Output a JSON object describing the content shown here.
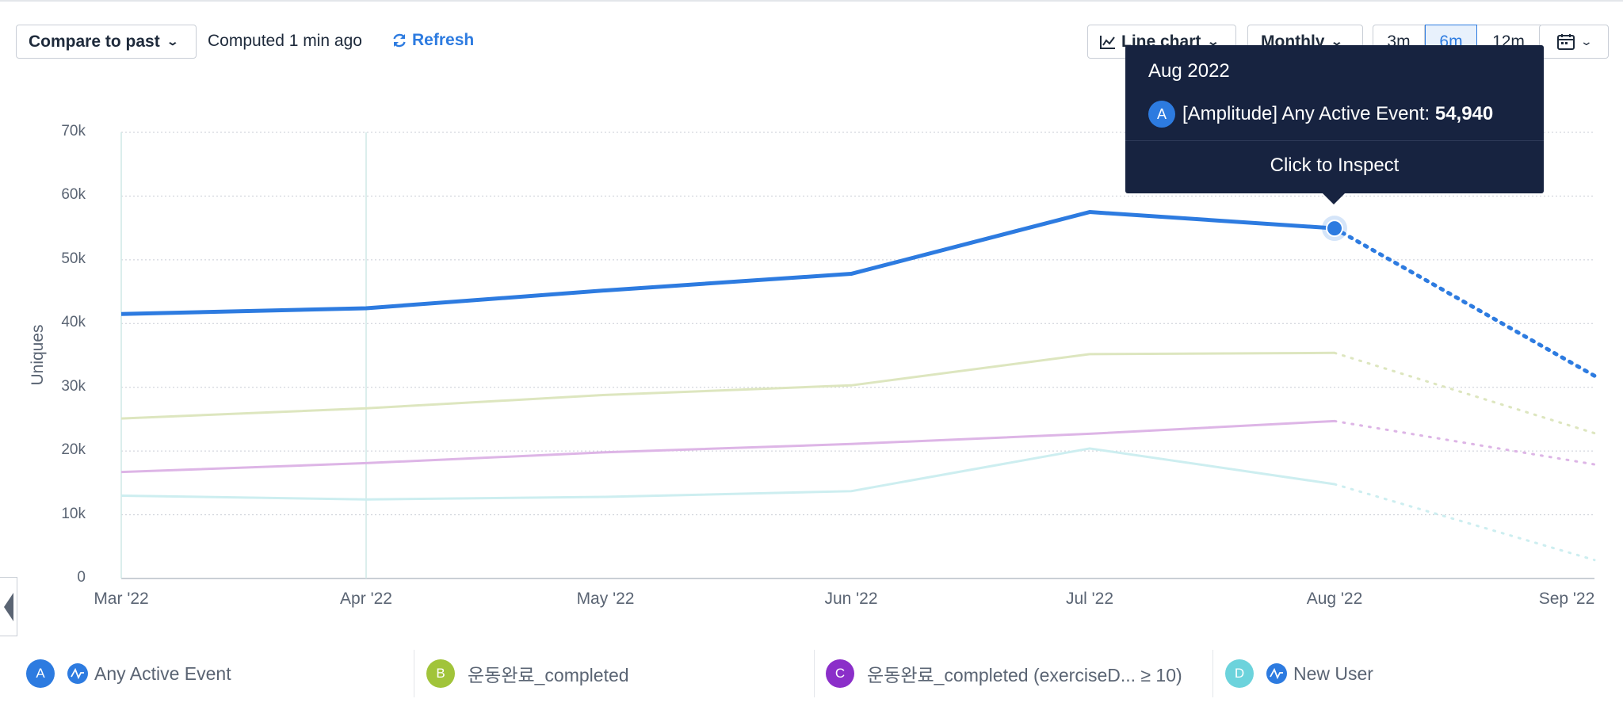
{
  "toolbar": {
    "compare_label": "Compare to past",
    "computed_text": "Computed 1 min ago",
    "refresh_label": "Refresh",
    "chart_type_label": "Line chart",
    "interval_label": "Monthly",
    "ranges": [
      "3m",
      "6m",
      "12m"
    ],
    "active_range": "6m",
    "accent_color": "#2d7be0"
  },
  "tooltip": {
    "date": "Aug 2022",
    "badge": "A",
    "event_label": "[Amplitude] Any Active Event: ",
    "value": "54,940",
    "inspect_label": "Click to Inspect"
  },
  "legend": [
    {
      "badge": "A",
      "label": "Any Active Event",
      "color": "#2d7be0",
      "amplitude_icon": true
    },
    {
      "badge": "B",
      "label": "운동완료_completed",
      "color": "#a1c43a",
      "amplitude_icon": false
    },
    {
      "badge": "C",
      "label": "운동완료_completed (exerciseD... ≥ 10)",
      "color": "#8b2fc9",
      "amplitude_icon": false
    },
    {
      "badge": "D",
      "label": "New User",
      "color": "#6cd3dc",
      "amplitude_icon": true
    }
  ],
  "chart_data": {
    "type": "line",
    "ylabel": "Uniques",
    "xlabel": "",
    "yticks": [
      "0",
      "10k",
      "20k",
      "30k",
      "40k",
      "50k",
      "60k",
      "70k"
    ],
    "ylim": [
      0,
      70000
    ],
    "categories": [
      "Mar '22",
      "Apr '22",
      "May '22",
      "Jun '22",
      "Jul '22",
      "Aug '22",
      "Sep '22"
    ],
    "incomplete_from_index": 5,
    "grid": true,
    "series": [
      {
        "name": "Any Active Event",
        "color": "#2d7be0",
        "values": [
          41500,
          42400,
          45200,
          47800,
          57500,
          54940,
          31800
        ]
      },
      {
        "name": "운동완료_completed",
        "color": "#dde6bf",
        "values": [
          25100,
          26700,
          28800,
          30300,
          35200,
          35400,
          22800
        ]
      },
      {
        "name": "운동완료_completed (exerciseD... ≥ 10)",
        "color": "#ddb5e6",
        "values": [
          16700,
          18100,
          19800,
          21100,
          22700,
          24700,
          17900
        ]
      },
      {
        "name": "New User",
        "color": "#cdeef0",
        "values": [
          13000,
          12400,
          12800,
          13700,
          20400,
          14800,
          2900
        ]
      }
    ],
    "highlight": {
      "series": 0,
      "index": 5
    }
  }
}
